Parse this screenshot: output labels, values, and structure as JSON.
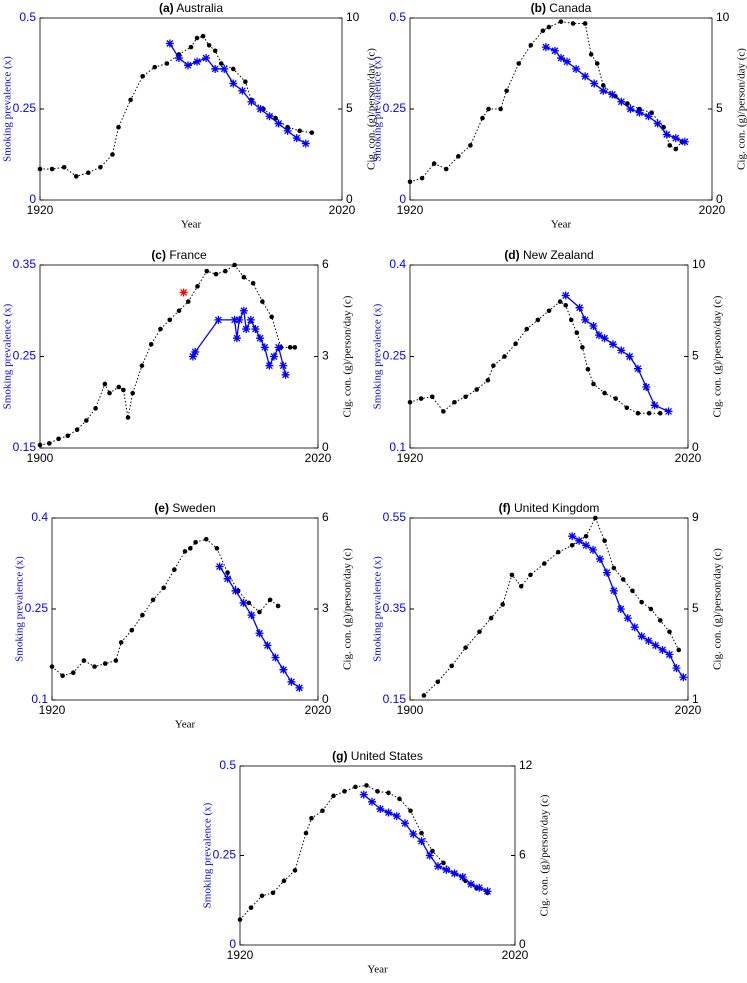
{
  "chart_data": [
    {
      "type": "line",
      "label": "(a)",
      "title": "Australia",
      "xlabel": "Year",
      "ylabel": "Smoking prevalence (x)",
      "y2label": "Cig. con. (g)/person/day (c)",
      "xlim": [
        1920,
        2020
      ],
      "xticks": [
        1920,
        2020
      ],
      "ylim": [
        0,
        0.5
      ],
      "yticks": [
        0,
        0.25,
        0.5
      ],
      "y2lim": [
        0,
        10
      ],
      "y2ticks": [
        0,
        5,
        10
      ],
      "series": [
        {
          "color": "#000000",
          "marker": "dot",
          "line": "dotted",
          "axis": "y2",
          "x": [
            1920,
            1924,
            1928,
            1932,
            1936,
            1940,
            1944,
            1946,
            1950,
            1954,
            1958,
            1962,
            1966,
            1970,
            1972,
            1974,
            1976,
            1978,
            1980,
            1984,
            1988,
            1990,
            1994,
            1998,
            2002,
            2006,
            2010
          ],
          "values": [
            1.7,
            1.7,
            1.8,
            1.3,
            1.5,
            1.8,
            2.5,
            4,
            5.5,
            6.8,
            7.3,
            7.5,
            8,
            8.4,
            8.9,
            9,
            8.5,
            8.2,
            7.5,
            7.2,
            6.5,
            5.5,
            5,
            4.5,
            4,
            3.8,
            3.7
          ]
        },
        {
          "color": "#0000ff",
          "marker": "star",
          "line": "solid",
          "x": [
            1963,
            1966,
            1969,
            1972,
            1975,
            1978,
            1981,
            1984,
            1987,
            1990,
            1993,
            1996,
            1999,
            2002,
            2005,
            2008
          ],
          "values": [
            0.43,
            0.39,
            0.37,
            0.38,
            0.39,
            0.36,
            0.36,
            0.32,
            0.3,
            0.27,
            0.25,
            0.23,
            0.21,
            0.19,
            0.17,
            0.155
          ]
        }
      ]
    },
    {
      "type": "line",
      "label": "(b)",
      "title": "Canada",
      "xlabel": "Year",
      "ylabel": "Smoking prevalence (x)",
      "y2label": "Cig. con. (g)/person/day (c)",
      "xlim": [
        1920,
        2020
      ],
      "xticks": [
        1920,
        2020
      ],
      "ylim": [
        0,
        0.5
      ],
      "yticks": [
        0,
        0.25,
        0.5
      ],
      "y2lim": [
        0,
        10
      ],
      "y2ticks": [
        0,
        5,
        10
      ],
      "series": [
        {
          "color": "#000000",
          "marker": "dot",
          "line": "dotted",
          "axis": "y2",
          "x": [
            1920,
            1924,
            1928,
            1932,
            1936,
            1940,
            1944,
            1946,
            1950,
            1952,
            1956,
            1960,
            1964,
            1966,
            1970,
            1974,
            1978,
            1980,
            1982,
            1984,
            1988,
            1992,
            1996,
            2000,
            2004,
            2006,
            2008,
            2010
          ],
          "values": [
            1,
            1.2,
            2,
            1.7,
            2.4,
            3,
            4.5,
            5,
            5,
            6,
            7.5,
            8.5,
            9.3,
            9.5,
            9.8,
            9.7,
            9.7,
            8,
            7.5,
            6.3,
            5.7,
            5.3,
            5,
            4.8,
            4,
            3,
            2.8,
            3.2
          ]
        },
        {
          "color": "#0000ff",
          "marker": "star",
          "line": "solid",
          "x": [
            1965,
            1968,
            1970,
            1972,
            1975,
            1978,
            1981,
            1984,
            1987,
            1990,
            1993,
            1996,
            1999,
            2002,
            2005,
            2008,
            2011
          ],
          "values": [
            0.42,
            0.41,
            0.39,
            0.38,
            0.36,
            0.34,
            0.32,
            0.3,
            0.29,
            0.27,
            0.25,
            0.24,
            0.23,
            0.21,
            0.18,
            0.17,
            0.16
          ]
        }
      ]
    },
    {
      "type": "line",
      "label": "(c)",
      "title": "France",
      "ylabel": "Smoking prevalence (x)",
      "y2label": "Cig. con. (g)/person/day (c)",
      "xlim": [
        1900,
        2020
      ],
      "xticks": [
        1900,
        2020
      ],
      "ylim": [
        0.15,
        0.35
      ],
      "yticks": [
        0.15,
        0.25,
        0.35
      ],
      "y2lim": [
        0,
        6
      ],
      "y2ticks": [
        0,
        3,
        6
      ],
      "series": [
        {
          "color": "#000000",
          "marker": "dot",
          "line": "dotted",
          "axis": "y2",
          "x": [
            1900,
            1904,
            1908,
            1912,
            1916,
            1920,
            1924,
            1928,
            1930,
            1934,
            1936,
            1938,
            1940,
            1944,
            1948,
            1952,
            1956,
            1960,
            1964,
            1968,
            1972,
            1976,
            1980,
            1984,
            1988,
            1992,
            1996,
            2000,
            2004,
            2008,
            2010
          ],
          "values": [
            0.1,
            0.15,
            0.3,
            0.4,
            0.6,
            0.9,
            1.3,
            2.1,
            1.8,
            2,
            1.9,
            1,
            1.8,
            2.7,
            3.4,
            3.9,
            4.2,
            4.5,
            4.8,
            5.3,
            5.8,
            5.7,
            5.8,
            6,
            5.6,
            5.4,
            4.8,
            4.3,
            3.3,
            3.3,
            3.3
          ]
        },
        {
          "color": "#0000ff",
          "marker": "star",
          "line": "solid",
          "x": [
            1966,
            1967,
            1977,
            1984,
            1985,
            1986,
            1988,
            1989,
            1991,
            1993,
            1995,
            1997,
            1999,
            2001,
            2003,
            2005,
            2006
          ],
          "values": [
            0.25,
            0.255,
            0.29,
            0.29,
            0.27,
            0.29,
            0.3,
            0.28,
            0.29,
            0.28,
            0.27,
            0.26,
            0.24,
            0.25,
            0.26,
            0.24,
            0.23
          ]
        },
        {
          "color": "#ff0000",
          "marker": "star",
          "line": "none",
          "x": [
            1962
          ],
          "values": [
            0.32
          ]
        }
      ]
    },
    {
      "type": "line",
      "label": "(d)",
      "title": "New Zealand",
      "ylabel": "Smoking prevalence (x)",
      "y2label": "Cig. con. (g)/person/day (c)",
      "xlim": [
        1920,
        2020
      ],
      "xticks": [
        1920,
        2020
      ],
      "ylim": [
        0.1,
        0.4
      ],
      "yticks": [
        0.1,
        0.25,
        0.4
      ],
      "y2lim": [
        0,
        10
      ],
      "y2ticks": [
        0,
        5,
        10
      ],
      "series": [
        {
          "color": "#000000",
          "marker": "dot",
          "line": "dotted",
          "axis": "y2",
          "x": [
            1920,
            1924,
            1928,
            1932,
            1936,
            1940,
            1944,
            1948,
            1950,
            1954,
            1958,
            1962,
            1966,
            1970,
            1974,
            1976,
            1978,
            1980,
            1982,
            1984,
            1986,
            1990,
            1994,
            1998,
            2002,
            2006,
            2010
          ],
          "values": [
            2.5,
            2.7,
            2.8,
            2,
            2.5,
            2.8,
            3.2,
            3.7,
            4.5,
            5,
            5.7,
            6.5,
            7,
            7.5,
            8,
            7.8,
            7,
            6.3,
            5.5,
            4.3,
            3.5,
            3,
            2.7,
            2.2,
            1.9,
            1.9,
            1.9
          ]
        },
        {
          "color": "#0000ff",
          "marker": "star",
          "line": "solid",
          "x": [
            1976,
            1981,
            1983,
            1986,
            1988,
            1990,
            1993,
            1996,
            1999,
            2002,
            2005,
            2008,
            2013
          ],
          "values": [
            0.35,
            0.33,
            0.31,
            0.3,
            0.285,
            0.28,
            0.27,
            0.26,
            0.25,
            0.23,
            0.2,
            0.17,
            0.16
          ]
        }
      ]
    },
    {
      "type": "line",
      "label": "(e)",
      "title": "Sweden",
      "xlabel": "Year",
      "ylabel": "Smoking prevalence (x)",
      "y2label": "Cig. con. (g)/person/day (c)",
      "xlim": [
        1920,
        2020
      ],
      "xticks": [
        1920,
        2020
      ],
      "ylim": [
        0.1,
        0.4
      ],
      "yticks": [
        0.1,
        0.25,
        0.4
      ],
      "y2lim": [
        0,
        6
      ],
      "y2ticks": [
        0,
        3,
        6
      ],
      "series": [
        {
          "color": "#000000",
          "marker": "dot",
          "line": "dotted",
          "axis": "y2",
          "x": [
            1920,
            1924,
            1928,
            1932,
            1936,
            1940,
            1944,
            1946,
            1950,
            1954,
            1958,
            1962,
            1966,
            1970,
            1972,
            1974,
            1978,
            1982,
            1986,
            1990,
            1994,
            1998,
            2002,
            2005
          ],
          "values": [
            1.1,
            0.8,
            0.9,
            1.3,
            1.1,
            1.2,
            1.3,
            1.9,
            2.3,
            2.8,
            3.3,
            3.7,
            4.3,
            4.9,
            5,
            5.2,
            5.3,
            5,
            4.2,
            3.6,
            3.2,
            2.9,
            3.3,
            3.1
          ]
        },
        {
          "color": "#0000ff",
          "marker": "star",
          "line": "solid",
          "x": [
            1983,
            1986,
            1989,
            1992,
            1995,
            1998,
            2001,
            2004,
            2007,
            2010,
            2013
          ],
          "values": [
            0.32,
            0.3,
            0.28,
            0.26,
            0.24,
            0.21,
            0.19,
            0.17,
            0.15,
            0.13,
            0.12
          ]
        }
      ]
    },
    {
      "type": "line",
      "label": "(f)",
      "title": "United Kingdom",
      "ylabel": "Smoking prevalence (x)",
      "y2label": "Cig. con. (g)/person/day (c)",
      "xlim": [
        1900,
        2020
      ],
      "xticks": [
        1900,
        2020
      ],
      "ylim": [
        0.15,
        0.55
      ],
      "yticks": [
        0.15,
        0.35,
        0.55
      ],
      "y2lim": [
        1,
        9
      ],
      "y2ticks": [
        1,
        5,
        9
      ],
      "series": [
        {
          "color": "#000000",
          "marker": "dot",
          "line": "dotted",
          "axis": "y2",
          "x": [
            1906,
            1912,
            1918,
            1924,
            1930,
            1935,
            1940,
            1944,
            1948,
            1952,
            1958,
            1964,
            1970,
            1976,
            1980,
            1984,
            1988,
            1992,
            1996,
            2000,
            2004,
            2008,
            2012,
            2016
          ],
          "values": [
            1.2,
            1.8,
            2.5,
            3.3,
            4,
            4.6,
            5.2,
            6.5,
            6,
            6.5,
            7,
            7.5,
            7.8,
            8.2,
            9,
            8,
            6.8,
            6.3,
            5.8,
            5.3,
            5,
            4.5,
            4,
            3.2
          ]
        },
        {
          "color": "#0000ff",
          "marker": "star",
          "line": "solid",
          "x": [
            1970,
            1973,
            1976,
            1979,
            1982,
            1985,
            1988,
            1991,
            1994,
            1997,
            2000,
            2003,
            2006,
            2009,
            2012,
            2015,
            2018
          ],
          "values": [
            0.51,
            0.5,
            0.49,
            0.48,
            0.46,
            0.43,
            0.39,
            0.35,
            0.33,
            0.31,
            0.29,
            0.28,
            0.27,
            0.26,
            0.25,
            0.22,
            0.2
          ]
        }
      ]
    },
    {
      "type": "line",
      "label": "(g)",
      "title": "United States",
      "xlabel": "Year",
      "ylabel": "Smoking prevalence (x)",
      "y2label": "Cig. con. (g)/person/day (c)",
      "xlim": [
        1920,
        2020
      ],
      "xticks": [
        1920,
        2020
      ],
      "ylim": [
        0,
        0.5
      ],
      "yticks": [
        0,
        0.25,
        0.5
      ],
      "y2lim": [
        0,
        12
      ],
      "y2ticks": [
        0,
        6,
        12
      ],
      "series": [
        {
          "color": "#000000",
          "marker": "dot",
          "line": "dotted",
          "axis": "y2",
          "x": [
            1920,
            1924,
            1928,
            1932,
            1936,
            1940,
            1944,
            1946,
            1950,
            1954,
            1958,
            1962,
            1966,
            1970,
            1974,
            1978,
            1982,
            1986,
            1990,
            1994,
            1998,
            2002,
            2006,
            2010
          ],
          "values": [
            1.7,
            2.5,
            3.3,
            3.5,
            4.3,
            5,
            7.5,
            8.5,
            9,
            10,
            10.3,
            10.6,
            10.7,
            10.3,
            10.2,
            9.8,
            9,
            7.5,
            6.3,
            5.5,
            4.8,
            4.3,
            3.8,
            3.5
          ]
        },
        {
          "color": "#0000ff",
          "marker": "star",
          "line": "solid",
          "x": [
            1965,
            1968,
            1971,
            1974,
            1977,
            1980,
            1983,
            1986,
            1989,
            1992,
            1995,
            1998,
            2001,
            2004,
            2007,
            2010
          ],
          "values": [
            0.42,
            0.4,
            0.38,
            0.37,
            0.36,
            0.34,
            0.31,
            0.29,
            0.25,
            0.22,
            0.21,
            0.2,
            0.19,
            0.17,
            0.16,
            0.15
          ]
        }
      ]
    }
  ]
}
